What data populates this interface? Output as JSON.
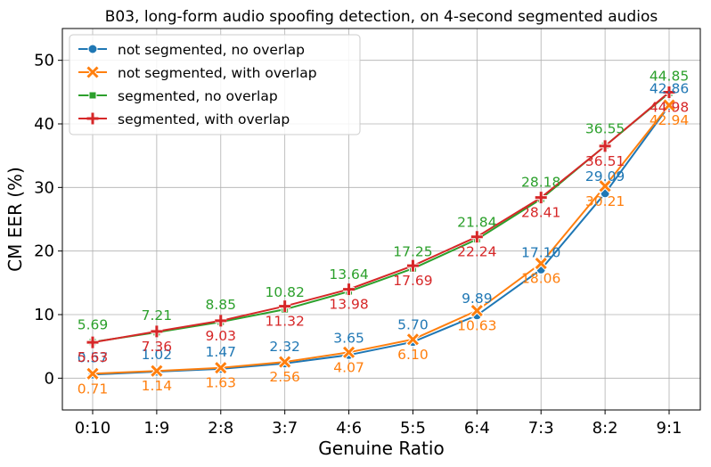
{
  "chart_data": {
    "type": "line",
    "title": "B03, long-form audio spoofing detection, on 4-second segmented audios",
    "xlabel": "Genuine Ratio",
    "ylabel": "CM EER (%)",
    "categories": [
      "0:10",
      "1:9",
      "2:8",
      "3:7",
      "4:6",
      "5:5",
      "6:4",
      "7:3",
      "8:2",
      "9:1"
    ],
    "ylim": [
      -5,
      55
    ],
    "yticks": [
      0,
      10,
      20,
      30,
      40,
      50
    ],
    "grid": true,
    "legend_position": "top-left",
    "series": [
      {
        "name": "not segmented, no overlap",
        "color": "#1f77b4",
        "marker": "circle",
        "values": [
          0.57,
          1.02,
          1.47,
          2.32,
          3.65,
          5.7,
          9.89,
          17.1,
          29.09,
          42.86
        ],
        "labels": [
          "0.57",
          "1.02",
          "1.47",
          "2.32",
          "3.65",
          "5.70",
          "9.89",
          "17.10",
          "29.09",
          "42.86"
        ]
      },
      {
        "name": "not segmented, with overlap",
        "color": "#ff7f0e",
        "marker": "x",
        "values": [
          0.71,
          1.14,
          1.63,
          2.56,
          4.07,
          6.1,
          10.63,
          18.06,
          30.21,
          42.94
        ],
        "labels": [
          "0.71",
          "1.14",
          "1.63",
          "2.56",
          "4.07",
          "6.10",
          "10.63",
          "18.06",
          "30.21",
          "42.94"
        ]
      },
      {
        "name": "segmented, no overlap",
        "color": "#2ca02c",
        "marker": "square",
        "values": [
          5.69,
          7.21,
          8.85,
          10.82,
          13.64,
          17.25,
          21.84,
          28.18,
          36.55,
          44.85
        ],
        "labels": [
          "5.69",
          "7.21",
          "8.85",
          "10.82",
          "13.64",
          "17.25",
          "21.84",
          "28.18",
          "36.55",
          "44.85"
        ]
      },
      {
        "name": "segmented, with overlap",
        "color": "#d62728",
        "marker": "plus",
        "values": [
          5.63,
          7.36,
          9.03,
          11.32,
          13.98,
          17.69,
          22.24,
          28.41,
          36.51,
          44.98
        ],
        "labels": [
          "5.63",
          "7.36",
          "9.03",
          "11.32",
          "13.98",
          "17.69",
          "22.24",
          "28.41",
          "36.51",
          "44.98"
        ]
      }
    ]
  }
}
